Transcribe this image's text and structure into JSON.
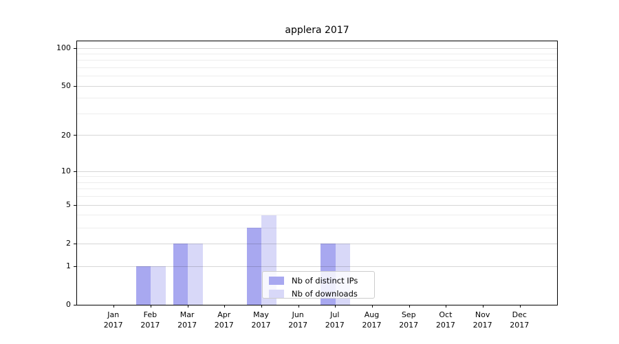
{
  "chart_data": {
    "type": "bar",
    "title": "applera 2017",
    "categories": [
      "Jan",
      "Feb",
      "Mar",
      "Apr",
      "May",
      "Jun",
      "Jul",
      "Aug",
      "Sep",
      "Oct",
      "Nov",
      "Dec"
    ],
    "category_year": "2017",
    "series": [
      {
        "name": "Nb of distinct IPs",
        "color": "#a8a8f0",
        "values": [
          0,
          1,
          2,
          0,
          3,
          0,
          2,
          0,
          0,
          0,
          0,
          0
        ]
      },
      {
        "name": "Nb of downloads",
        "color": "#d8d8f8",
        "values": [
          0,
          1,
          2,
          0,
          4,
          0,
          2,
          0,
          0,
          0,
          0,
          0
        ]
      }
    ],
    "y_axis": {
      "scale": "log1p",
      "major_ticks": [
        0,
        1,
        2,
        5,
        10,
        20,
        50,
        100
      ],
      "minor_ticks": [
        3,
        4,
        6,
        7,
        8,
        9,
        30,
        40,
        60,
        70,
        80,
        90
      ],
      "ylim": [
        0,
        113
      ]
    },
    "xlabel": "",
    "ylabel": "",
    "grid": true,
    "legend_position": "lower center-right inside plot"
  },
  "colors": {
    "background": "#ffffff",
    "spine": "#000000",
    "major_grid": "rgba(0,0,0,0.16)",
    "minor_grid": "rgba(0,0,0,0.07)",
    "legend_border": "#cccccc"
  }
}
